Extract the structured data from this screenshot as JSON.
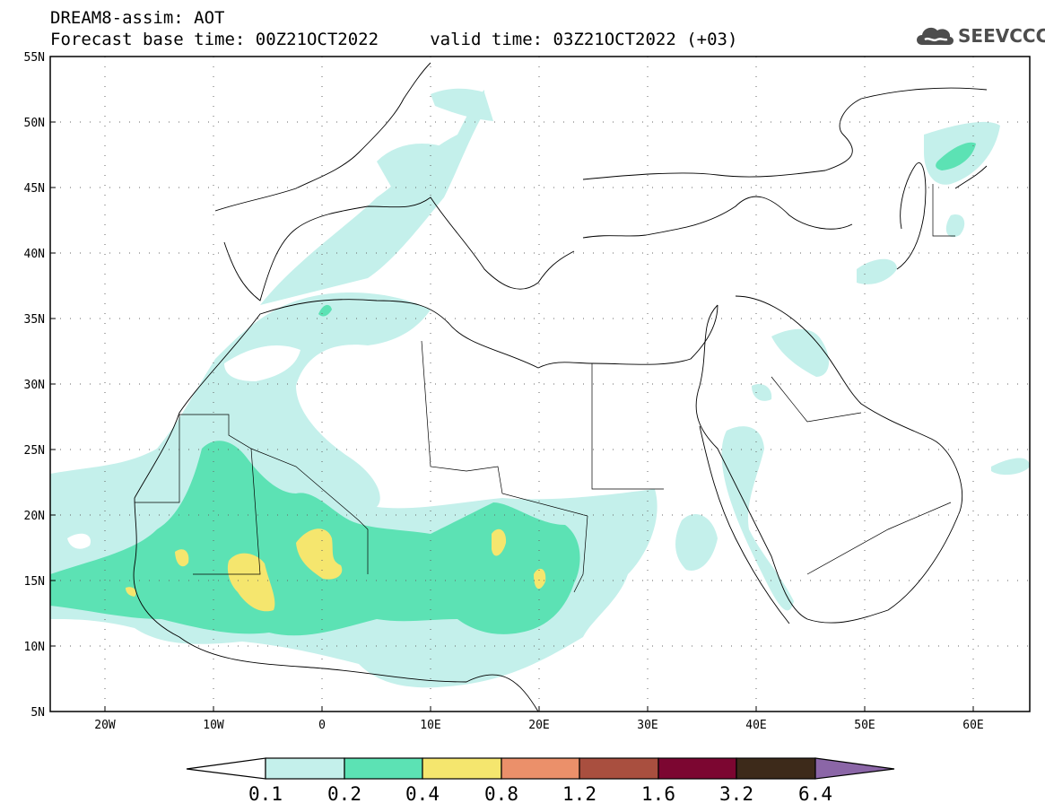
{
  "header": {
    "line1": "DREAM8-assim: AOT",
    "line2": "Forecast base time: 00Z21OCT2022     valid time: 03Z21OCT2022 (+03)"
  },
  "logo": {
    "text": "SEEVCCC",
    "icon": "cloud-icon",
    "color": "#4d4d4d"
  },
  "map": {
    "lat_labels": [
      "55N",
      "50N",
      "45N",
      "40N",
      "35N",
      "30N",
      "25N",
      "20N",
      "15N",
      "10N",
      "5N"
    ],
    "lon_labels": [
      "20W",
      "10W",
      "0",
      "10E",
      "20E",
      "30E",
      "40E",
      "50E",
      "60E"
    ],
    "lon_range": [
      -25,
      65
    ],
    "lat_range": [
      5,
      55
    ]
  },
  "legend": {
    "labels": [
      "0.1",
      "0.2",
      "0.4",
      "0.8",
      "1.2",
      "1.6",
      "3.2",
      "6.4"
    ],
    "colors": [
      "#c4f0eb",
      "#5ce2b4",
      "#f5e66e",
      "#eb906a",
      "#a94f3f",
      "#7c0631",
      "#3d2a1a",
      "#8b66a7"
    ]
  }
}
